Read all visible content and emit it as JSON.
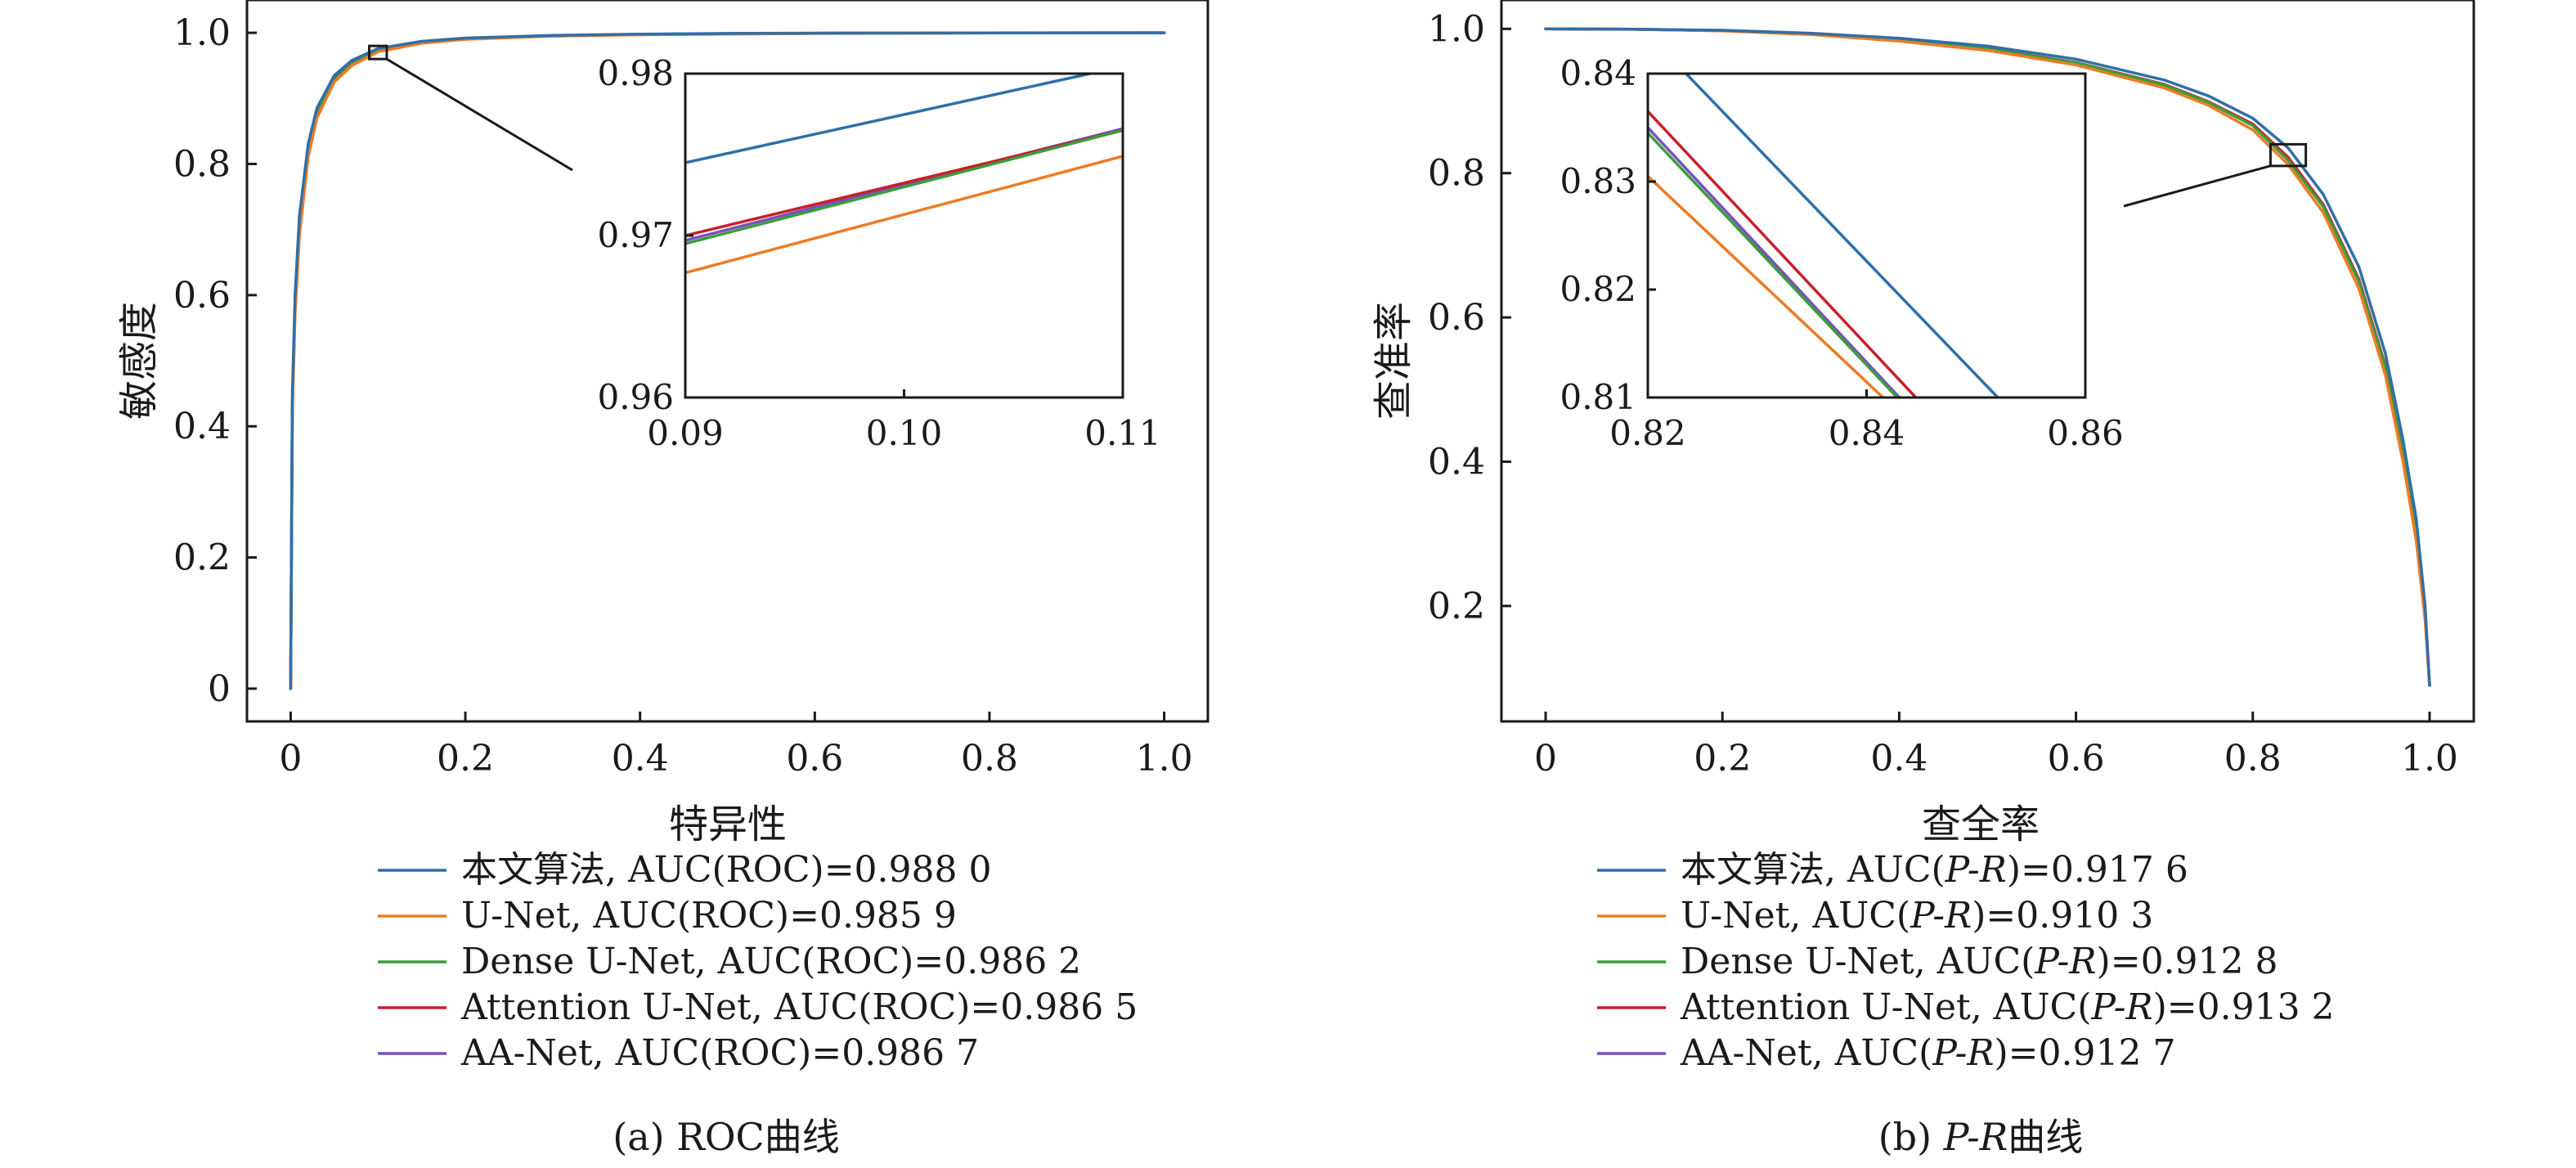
{
  "chart_data": [
    {
      "type": "line",
      "panel_id": "a",
      "caption": "(a) ROC曲线",
      "xlabel": "特异性",
      "ylabel": "敏感度",
      "xlim": [
        -0.05,
        1.05
      ],
      "ylim": [
        -0.05,
        1.05
      ],
      "xticks": [
        0,
        0.2,
        0.4,
        0.6,
        0.8,
        1.0
      ],
      "xtick_labels": [
        "0",
        "0.2",
        "0.4",
        "0.6",
        "0.8",
        "1.0"
      ],
      "yticks": [
        0,
        0.2,
        0.4,
        0.6,
        0.8,
        1.0
      ],
      "ytick_labels": [
        "0",
        "0.2",
        "0.4",
        "0.6",
        "0.8",
        "1.0"
      ],
      "grid": false,
      "legend_position": "bottom",
      "zoom_box": {
        "x": [
          0.09,
          0.11
        ],
        "y": [
          0.96,
          0.98
        ]
      },
      "inset": {
        "xlim": [
          0.09,
          0.11
        ],
        "ylim": [
          0.96,
          0.98
        ],
        "xticks": [
          0.09,
          0.1,
          0.11
        ],
        "xtick_labels": [
          "0.09",
          "0.10",
          "0.11"
        ],
        "yticks": [
          0.96,
          0.97,
          0.98
        ],
        "ytick_labels": [
          "0.96",
          "0.97",
          "0.98"
        ],
        "series": [
          {
            "x": [
              0.09,
              0.1085
            ],
            "y": [
              0.9745,
              0.98
            ]
          },
          {
            "x": [
              0.09,
              0.11
            ],
            "y": [
              0.9677,
              0.9749
            ]
          },
          {
            "x": [
              0.09,
              0.11
            ],
            "y": [
              0.9695,
              0.9765
            ]
          },
          {
            "x": [
              0.09,
              0.11
            ],
            "y": [
              0.97,
              0.9765
            ]
          },
          {
            "x": [
              0.09,
              0.11
            ],
            "y": [
              0.9697,
              0.9766
            ]
          }
        ]
      },
      "series": [
        {
          "label": "本文算法, AUC(ROC)=0.988 0",
          "color": "#2f6fa8",
          "x": [
            0,
            0.002,
            0.005,
            0.01,
            0.02,
            0.03,
            0.05,
            0.07,
            0.1,
            0.15,
            0.2,
            0.3,
            0.4,
            0.5,
            0.6,
            0.8,
            1.0
          ],
          "y": [
            0,
            0.45,
            0.6,
            0.72,
            0.83,
            0.885,
            0.935,
            0.958,
            0.976,
            0.987,
            0.992,
            0.996,
            0.998,
            0.999,
            0.9995,
            0.9999,
            1.0
          ]
        },
        {
          "label": "U-Net, AUC(ROC)=0.985 9",
          "color": "#ee7b24",
          "x": [
            0,
            0.002,
            0.005,
            0.01,
            0.02,
            0.03,
            0.05,
            0.07,
            0.1,
            0.15,
            0.2,
            0.3,
            0.4,
            0.5,
            0.6,
            0.8,
            1.0
          ],
          "y": [
            0,
            0.42,
            0.57,
            0.69,
            0.81,
            0.87,
            0.925,
            0.95,
            0.971,
            0.984,
            0.99,
            0.995,
            0.997,
            0.998,
            0.999,
            0.9998,
            1.0
          ]
        },
        {
          "label": "Dense U-Net, AUC(ROC)=0.986 2",
          "color": "#3a9e3a",
          "x": [
            0,
            0.002,
            0.005,
            0.01,
            0.02,
            0.03,
            0.05,
            0.07,
            0.1,
            0.15,
            0.2,
            0.3,
            0.4,
            0.5,
            0.6,
            0.8,
            1.0
          ],
          "y": [
            0,
            0.43,
            0.58,
            0.7,
            0.815,
            0.875,
            0.928,
            0.952,
            0.973,
            0.985,
            0.991,
            0.995,
            0.9975,
            0.9985,
            0.9992,
            0.9998,
            1.0
          ]
        },
        {
          "label": "Attention U-Net, AUC(ROC)=0.986 5",
          "color": "#c8202c",
          "x": [
            0,
            0.002,
            0.005,
            0.01,
            0.02,
            0.03,
            0.05,
            0.07,
            0.1,
            0.15,
            0.2,
            0.3,
            0.4,
            0.5,
            0.6,
            0.8,
            1.0
          ],
          "y": [
            0,
            0.43,
            0.585,
            0.705,
            0.818,
            0.877,
            0.929,
            0.953,
            0.9733,
            0.9855,
            0.9912,
            0.9952,
            0.9976,
            0.9986,
            0.9993,
            0.9998,
            1.0
          ]
        },
        {
          "label": "AA-Net, AUC(ROC)=0.986 7",
          "color": "#7b4fbf",
          "x": [
            0,
            0.002,
            0.005,
            0.01,
            0.02,
            0.03,
            0.05,
            0.07,
            0.1,
            0.15,
            0.2,
            0.3,
            0.4,
            0.5,
            0.6,
            0.8,
            1.0
          ],
          "y": [
            0,
            0.435,
            0.588,
            0.707,
            0.82,
            0.878,
            0.93,
            0.954,
            0.9734,
            0.9856,
            0.9913,
            0.9953,
            0.9977,
            0.9987,
            0.9993,
            0.9998,
            1.0
          ]
        }
      ]
    },
    {
      "type": "line",
      "panel_id": "b",
      "caption": "(b) P-R曲线",
      "caption_parts": {
        "prefix": "(b) ",
        "italic": "P-R",
        "suffix": "曲线"
      },
      "xlabel": "查全率",
      "ylabel": "查准率",
      "xlim": [
        -0.05,
        1.05
      ],
      "ylim": [
        0.04,
        1.04
      ],
      "xticks": [
        0,
        0.2,
        0.4,
        0.6,
        0.8,
        1.0
      ],
      "xtick_labels": [
        "0",
        "0.2",
        "0.4",
        "0.6",
        "0.8",
        "1.0"
      ],
      "yticks": [
        0.2,
        0.4,
        0.6,
        0.8,
        1.0
      ],
      "ytick_labels": [
        "0.2",
        "0.4",
        "0.6",
        "0.8",
        "1.0"
      ],
      "grid": false,
      "legend_position": "bottom",
      "zoom_box": {
        "x": [
          0.82,
          0.86
        ],
        "y": [
          0.81,
          0.84
        ]
      },
      "inset": {
        "xlim": [
          0.82,
          0.86
        ],
        "ylim": [
          0.81,
          0.84
        ],
        "xticks": [
          0.82,
          0.84,
          0.86
        ],
        "xtick_labels": [
          "0.82",
          "0.84",
          "0.86"
        ],
        "yticks": [
          0.81,
          0.82,
          0.83,
          0.84
        ],
        "ytick_labels": [
          "0.81",
          "0.82",
          "0.83",
          "0.84"
        ],
        "series": [
          {
            "x": [
              0.8235,
              0.852
            ],
            "y": [
              0.84,
              0.81
            ]
          },
          {
            "x": [
              0.82,
              0.8415
            ],
            "y": [
              0.8305,
              0.81
            ]
          },
          {
            "x": [
              0.82,
              0.8428
            ],
            "y": [
              0.8345,
              0.81
            ]
          },
          {
            "x": [
              0.82,
              0.8445
            ],
            "y": [
              0.8365,
              0.81
            ]
          },
          {
            "x": [
              0.82,
              0.843
            ],
            "y": [
              0.835,
              0.81
            ]
          }
        ]
      },
      "series": [
        {
          "label_prefix": "本文算法, AUC(",
          "label_italic": "P-R",
          "label_suffix": ")=0.917 6",
          "color": "#2f6fa8",
          "x": [
            0,
            0.1,
            0.2,
            0.3,
            0.4,
            0.5,
            0.6,
            0.7,
            0.75,
            0.8,
            0.84,
            0.88,
            0.92,
            0.95,
            0.97,
            0.985,
            0.995,
            1.0
          ],
          "y": [
            1.0,
            0.9995,
            0.998,
            0.994,
            0.987,
            0.976,
            0.958,
            0.929,
            0.907,
            0.876,
            0.835,
            0.77,
            0.67,
            0.55,
            0.43,
            0.32,
            0.2,
            0.09
          ]
        },
        {
          "label_prefix": "U-Net, AUC(",
          "label_italic": "P-R",
          "label_suffix": ")=0.910 3",
          "color": "#ee7b24",
          "x": [
            0,
            0.1,
            0.2,
            0.3,
            0.4,
            0.5,
            0.6,
            0.7,
            0.75,
            0.8,
            0.84,
            0.88,
            0.92,
            0.95,
            0.97,
            0.985,
            0.995,
            1.0
          ],
          "y": [
            1.0,
            0.9993,
            0.9972,
            0.992,
            0.983,
            0.97,
            0.95,
            0.918,
            0.894,
            0.86,
            0.812,
            0.745,
            0.64,
            0.52,
            0.4,
            0.29,
            0.18,
            0.09
          ]
        },
        {
          "label_prefix": "Dense U-Net, AUC(",
          "label_italic": "P-R",
          "label_suffix": ")=0.912 8",
          "color": "#3a9e3a",
          "x": [
            0,
            0.1,
            0.2,
            0.3,
            0.4,
            0.5,
            0.6,
            0.7,
            0.75,
            0.8,
            0.84,
            0.88,
            0.92,
            0.95,
            0.97,
            0.985,
            0.995,
            1.0
          ],
          "y": [
            1.0,
            0.9994,
            0.9975,
            0.9925,
            0.9845,
            0.972,
            0.953,
            0.922,
            0.898,
            0.866,
            0.818,
            0.753,
            0.65,
            0.53,
            0.41,
            0.3,
            0.19,
            0.09
          ]
        },
        {
          "label_prefix": "Attention U-Net, AUC(",
          "label_italic": "P-R",
          "label_suffix": ")=0.913 2",
          "color": "#c8202c",
          "x": [
            0,
            0.1,
            0.2,
            0.3,
            0.4,
            0.5,
            0.6,
            0.7,
            0.75,
            0.8,
            0.84,
            0.88,
            0.92,
            0.95,
            0.97,
            0.985,
            0.995,
            1.0
          ],
          "y": [
            1.0,
            0.9994,
            0.9976,
            0.9928,
            0.985,
            0.9725,
            0.9535,
            0.923,
            0.899,
            0.868,
            0.822,
            0.756,
            0.653,
            0.533,
            0.413,
            0.302,
            0.19,
            0.09
          ]
        },
        {
          "label_prefix": "AA-Net, AUC(",
          "label_italic": "P-R",
          "label_suffix": ")=0.912 7",
          "color": "#7b4fbf",
          "x": [
            0,
            0.1,
            0.2,
            0.3,
            0.4,
            0.5,
            0.6,
            0.7,
            0.75,
            0.8,
            0.84,
            0.88,
            0.92,
            0.95,
            0.97,
            0.985,
            0.995,
            1.0
          ],
          "y": [
            1.0,
            0.9994,
            0.9975,
            0.9926,
            0.9847,
            0.9722,
            0.9532,
            0.9225,
            0.8985,
            0.8665,
            0.819,
            0.754,
            0.651,
            0.531,
            0.411,
            0.3,
            0.19,
            0.09
          ]
        }
      ]
    }
  ]
}
